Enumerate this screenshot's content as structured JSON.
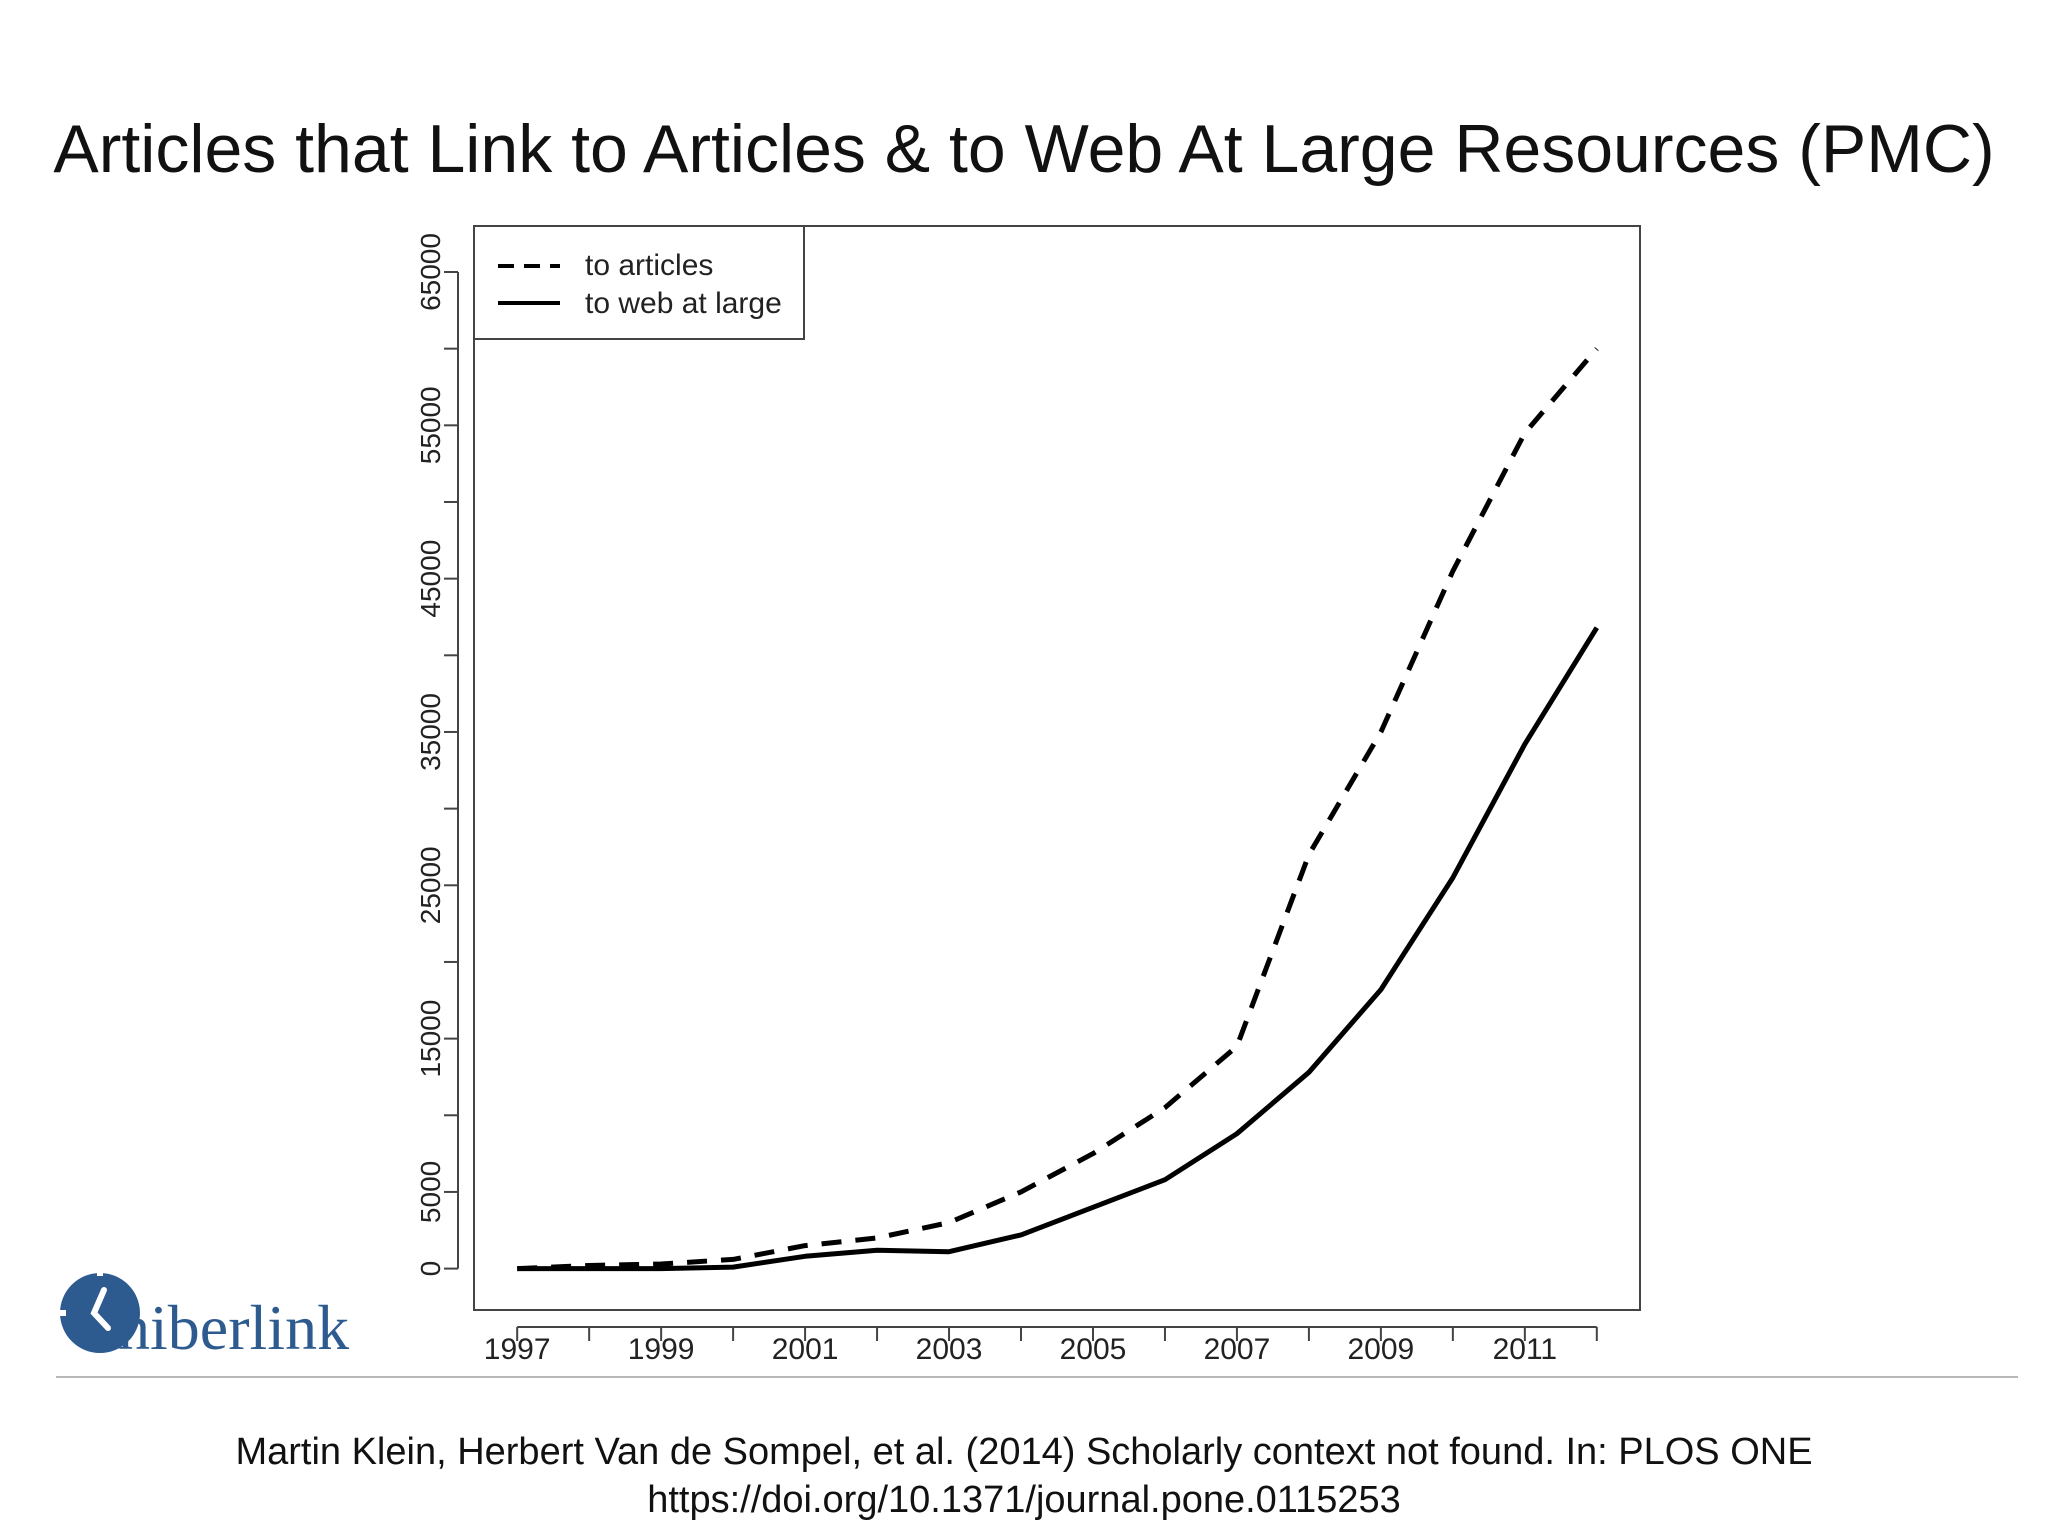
{
  "slide": {
    "title": "Articles that Link to Articles & to Web At Large Resources (PMC)",
    "citation_line1": "Martin Klein, Herbert Van de Sompel, et al. (2014) Scholarly context not found. In: PLOS ONE",
    "citation_line2": "https://doi.org/10.1371/journal.pone.0115253",
    "logo_text": "hiberlink",
    "logo_icon": "clock-icon",
    "logo_color": "#2d5b8f"
  },
  "chart_data": {
    "type": "line",
    "title": "",
    "xlabel": "",
    "ylabel": "",
    "x": [
      1997,
      1998,
      1999,
      2000,
      2001,
      2002,
      2003,
      2004,
      2005,
      2006,
      2007,
      2008,
      2009,
      2010,
      2011,
      2012
    ],
    "xlim": [
      1996.4,
      2012.6
    ],
    "ylim": [
      -2700,
      68000
    ],
    "x_tick_labels": [
      "1997",
      "1999",
      "2001",
      "2003",
      "2005",
      "2007",
      "2009",
      "2011"
    ],
    "x_tick_values": [
      1997,
      1998,
      1999,
      2000,
      2001,
      2002,
      2003,
      2004,
      2005,
      2006,
      2007,
      2008,
      2009,
      2010,
      2011,
      2012
    ],
    "y_tick_values": [
      0,
      5000,
      10000,
      15000,
      20000,
      25000,
      30000,
      35000,
      40000,
      45000,
      50000,
      55000,
      60000,
      65000
    ],
    "y_tick_labels": [
      "0",
      "5000",
      "15000",
      "25000",
      "35000",
      "45000",
      "55000",
      "65000"
    ],
    "grid": false,
    "legend_position": "top-left",
    "series": [
      {
        "name": "to articles",
        "style": "dashed",
        "values": [
          0,
          200,
          300,
          600,
          1500,
          2000,
          3000,
          5000,
          7500,
          10500,
          14500,
          27000,
          35000,
          45500,
          54500,
          60000
        ]
      },
      {
        "name": "to web at large",
        "style": "solid",
        "values": [
          0,
          0,
          0,
          100,
          800,
          1200,
          1100,
          2200,
          4000,
          5800,
          8800,
          12800,
          18200,
          25500,
          34200,
          41800
        ]
      }
    ]
  }
}
